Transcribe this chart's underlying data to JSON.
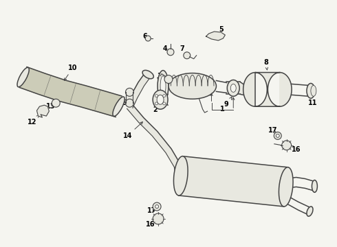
{
  "bg_color": "#f5f5f0",
  "line_color": "#444444",
  "fill_color": "#e8e8e0",
  "text_color": "#000000",
  "figsize": [
    4.9,
    3.6
  ],
  "dpi": 100,
  "font_size": 7.0
}
